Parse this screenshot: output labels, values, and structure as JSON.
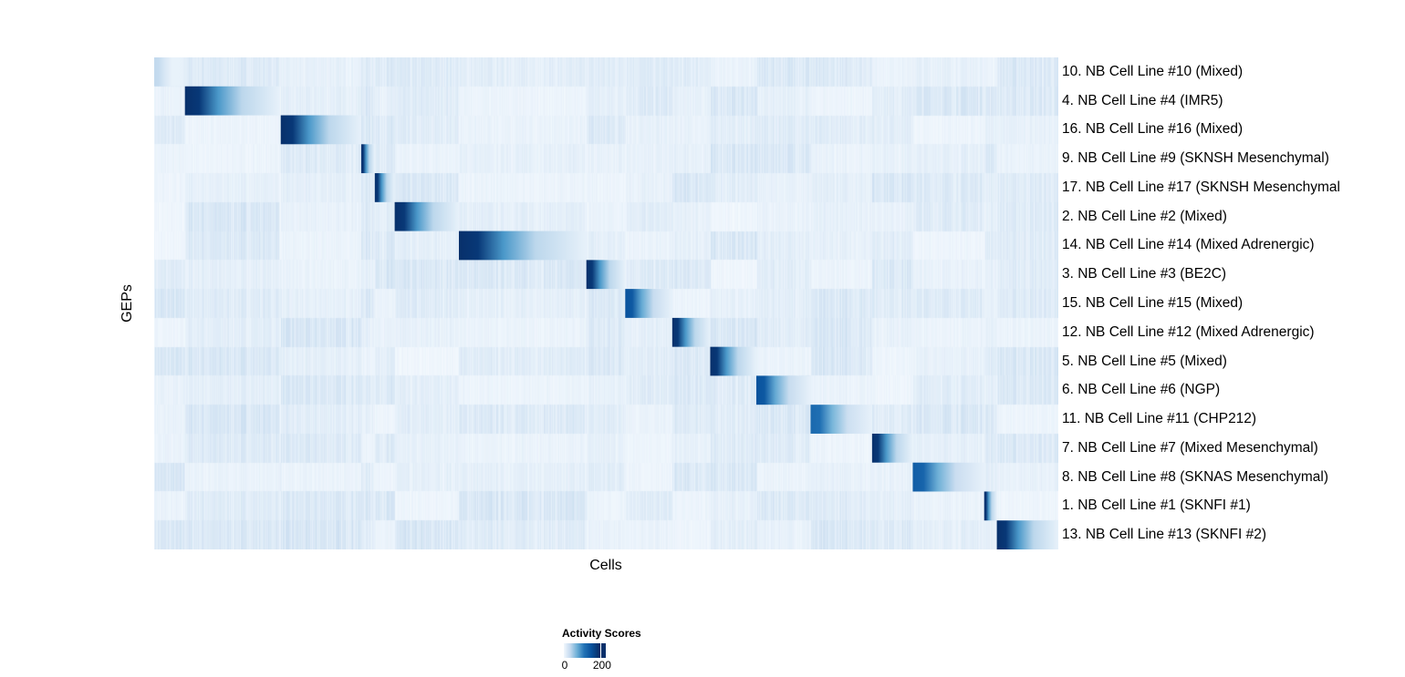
{
  "chart_data": {
    "type": "heatmap",
    "title": "",
    "xlabel": "Cells",
    "ylabel": "GEPs",
    "rows": [
      "10. NB Cell Line #10 (Mixed)",
      "4. NB Cell Line #4 (IMR5)",
      "16. NB Cell Line #16 (Mixed)",
      "9. NB Cell Line #9 (SKNSH Mesenchymal)",
      "17. NB Cell Line #17 (SKNSH Mesenchymal",
      "2. NB Cell Line #2 (Mixed)",
      "14. NB Cell Line #14 (Mixed Adrenergic)",
      "3. NB Cell Line #3 (BE2C)",
      "15. NB Cell Line #15 (Mixed)",
      "12. NB Cell Line #12 (Mixed Adrenergic)",
      "5. NB Cell Line #5 (Mixed)",
      "6. NB Cell Line #6 (NGP)",
      "11. NB Cell Line #11 (CHP212)",
      "7. NB Cell Line #7 (Mixed Mesenchymal)",
      "8. NB Cell Line #8 (SKNAS Mesenchymal)",
      "1. NB Cell Line #1 (SKNFI #1)",
      "13. NB Cell Line #13 (SKNFI #2)"
    ],
    "cell_cluster_ranges_percent": [
      [
        0,
        3.3
      ],
      [
        3.4,
        13.9
      ],
      [
        14.0,
        22.9
      ],
      [
        22.9,
        24.4
      ],
      [
        24.4,
        26.6
      ],
      [
        26.6,
        33.7
      ],
      [
        33.7,
        47.8
      ],
      [
        47.8,
        52.1
      ],
      [
        52.1,
        57.3
      ],
      [
        57.3,
        61.5
      ],
      [
        61.5,
        66.6
      ],
      [
        66.6,
        72.6
      ],
      [
        72.6,
        79.4
      ],
      [
        79.4,
        83.9
      ],
      [
        83.9,
        91.8
      ],
      [
        91.8,
        93.2
      ],
      [
        93.2,
        100
      ]
    ],
    "peak_activity": [
      60,
      230,
      230,
      230,
      230,
      230,
      230,
      230,
      200,
      230,
      230,
      200,
      180,
      230,
      190,
      230,
      230
    ],
    "legend": {
      "title": "Activity Scores",
      "ticks": [
        0,
        200
      ],
      "range": [
        0,
        230
      ],
      "placement": "bottom"
    },
    "colormap": [
      "#f7fbff",
      "#deebf7",
      "#c6dbef",
      "#9ecae1",
      "#6baed6",
      "#4292c6",
      "#2171b5",
      "#08519c",
      "#08306b"
    ]
  }
}
